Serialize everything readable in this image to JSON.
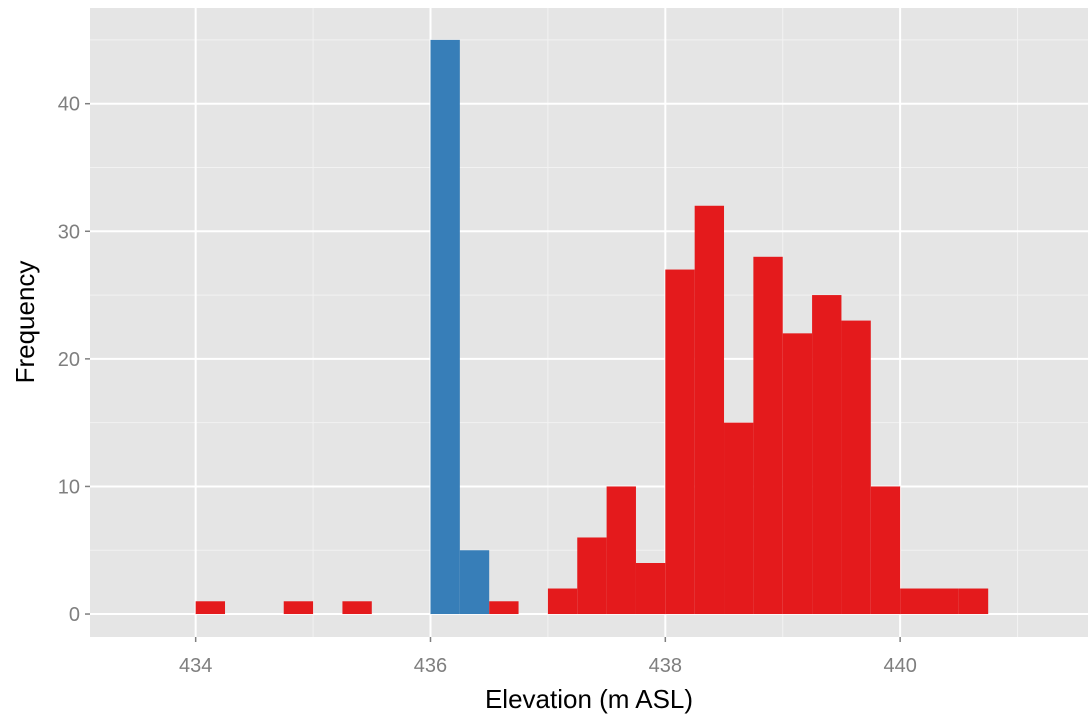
{
  "chart_data": {
    "type": "bar",
    "title": "",
    "xlabel": "Elevation (m ASL)",
    "ylabel": "Frequency",
    "xlim": [
      433.1,
      441.6
    ],
    "ylim": [
      -1.8,
      47.5
    ],
    "x_ticks": [
      434,
      436,
      438,
      440
    ],
    "y_ticks": [
      0,
      10,
      20,
      30,
      40
    ],
    "grid": true,
    "legend": "none",
    "bin_width": 0.25,
    "colors": {
      "panel": "#e5e5e5",
      "grid_major": "#ffffff",
      "grid_minor": "#f2f2f2"
    },
    "series": [
      {
        "color": "#377eb8",
        "bins": [
          {
            "x0": 436.0,
            "x1": 436.25,
            "count": 45
          },
          {
            "x0": 436.25,
            "x1": 436.5,
            "count": 5
          }
        ]
      },
      {
        "color": "#e41a1c",
        "bins": [
          {
            "x0": 434.0,
            "x1": 434.25,
            "count": 1
          },
          {
            "x0": 434.75,
            "x1": 435.0,
            "count": 1
          },
          {
            "x0": 435.25,
            "x1": 435.5,
            "count": 1
          },
          {
            "x0": 436.5,
            "x1": 436.75,
            "count": 1
          },
          {
            "x0": 437.0,
            "x1": 437.25,
            "count": 2
          },
          {
            "x0": 437.25,
            "x1": 437.5,
            "count": 6
          },
          {
            "x0": 437.5,
            "x1": 437.75,
            "count": 10
          },
          {
            "x0": 437.75,
            "x1": 438.0,
            "count": 4
          },
          {
            "x0": 438.0,
            "x1": 438.25,
            "count": 27
          },
          {
            "x0": 438.25,
            "x1": 438.5,
            "count": 32
          },
          {
            "x0": 438.5,
            "x1": 438.75,
            "count": 15
          },
          {
            "x0": 438.75,
            "x1": 439.0,
            "count": 28
          },
          {
            "x0": 439.0,
            "x1": 439.25,
            "count": 22
          },
          {
            "x0": 439.25,
            "x1": 439.5,
            "count": 25
          },
          {
            "x0": 439.5,
            "x1": 439.75,
            "count": 23
          },
          {
            "x0": 439.75,
            "x1": 440.0,
            "count": 10
          },
          {
            "x0": 440.0,
            "x1": 440.25,
            "count": 2
          },
          {
            "x0": 440.25,
            "x1": 440.5,
            "count": 2
          },
          {
            "x0": 440.5,
            "x1": 440.75,
            "count": 2
          }
        ]
      }
    ]
  }
}
